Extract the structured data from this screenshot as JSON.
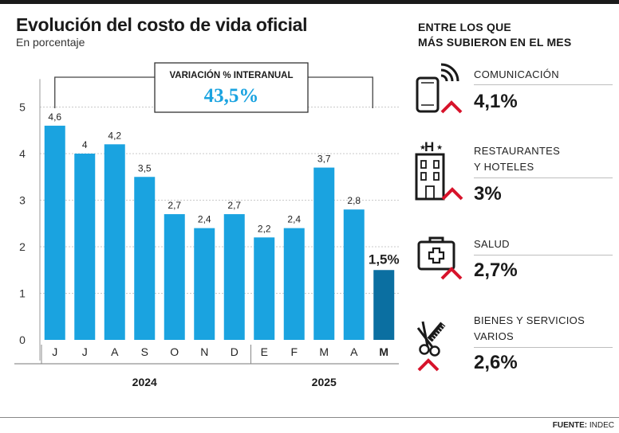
{
  "header": {
    "title": "Evolución del costo de vida oficial",
    "subtitle": "En porcentaje"
  },
  "chart_data": {
    "type": "bar",
    "categories": [
      "J",
      "J",
      "A",
      "S",
      "O",
      "N",
      "D",
      "E",
      "F",
      "M",
      "A",
      "M"
    ],
    "values": [
      4.6,
      4,
      4.2,
      3.5,
      2.7,
      2.4,
      2.7,
      2.2,
      2.4,
      3.7,
      2.8,
      1.5
    ],
    "value_labels": [
      "4,6",
      "4",
      "4,2",
      "3,5",
      "2,7",
      "2,4",
      "2,7",
      "2,2",
      "2,4",
      "3,7",
      "2,8",
      "1,5%"
    ],
    "highlight_index": 11,
    "colors": {
      "bar": "#1aa3e0",
      "highlight": "#0b6fa1",
      "accent": "#1aa3e0"
    },
    "yticks": [
      0,
      1,
      2,
      3,
      4,
      5
    ],
    "ylim": [
      0,
      5.6
    ],
    "grid": true,
    "years": [
      {
        "label": "2024",
        "start": 0,
        "end": 6
      },
      {
        "label": "2025",
        "start": 7,
        "end": 11
      }
    ],
    "annotation": {
      "label": "VARIACIÓN % INTERANUAL",
      "value": "43,5%"
    }
  },
  "sidebar": {
    "title_line1": "ENTRE LOS QUE",
    "title_line2": "MÁS SUBIERON EN EL MES",
    "arrow_color": "#d7132b",
    "items": [
      {
        "icon": "phone-icon",
        "label_line1": "COMUNICACIÓN",
        "label_line2": "",
        "value": "4,1%"
      },
      {
        "icon": "hotel-icon",
        "label_line1": "RESTAURANTES",
        "label_line2": "Y HOTELES",
        "value": "3%"
      },
      {
        "icon": "medical-kit-icon",
        "label_line1": "SALUD",
        "label_line2": "",
        "value": "2,7%"
      },
      {
        "icon": "scissors-comb-icon",
        "label_line1": "BIENES Y SERVICIOS",
        "label_line2": "VARIOS",
        "value": "2,6%"
      }
    ]
  },
  "footer": {
    "source_label": "FUENTE:",
    "source_value": "INDEC"
  }
}
